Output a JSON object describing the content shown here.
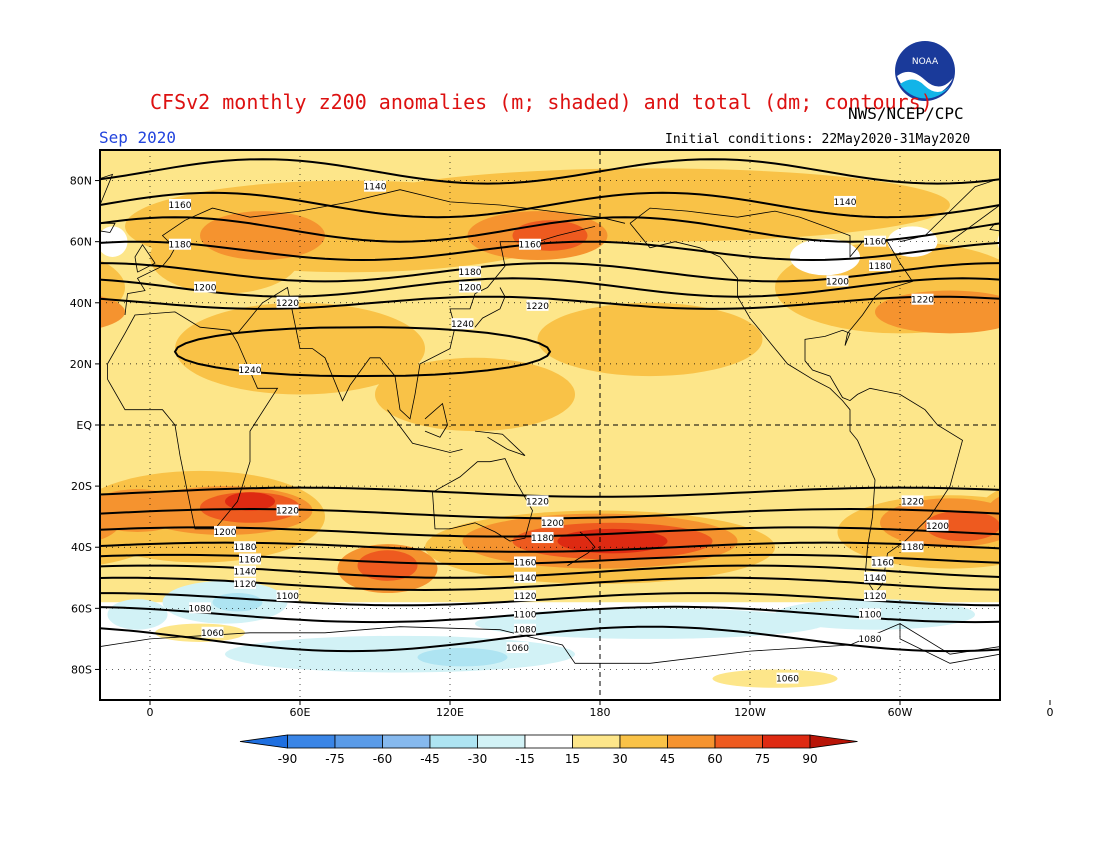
{
  "header": {
    "title": "CFSv2 monthly z200 anomalies (m; shaded) and total (dm; contours)",
    "organization": "NWS/NCEP/CPC",
    "month": "Sep 2020",
    "initial_conditions": "Initial conditions: 22May2020-31May2020",
    "logo_text": "NOAA"
  },
  "axes": {
    "x_ticks": [
      "0",
      "60E",
      "120E",
      "180",
      "120W",
      "60W",
      "0"
    ],
    "y_ticks": [
      "80N",
      "60N",
      "40N",
      "20N",
      "EQ",
      "20S",
      "40S",
      "60S",
      "80S"
    ]
  },
  "colorbar": {
    "labels": [
      "-90",
      "-75",
      "-60",
      "-45",
      "-30",
      "-15",
      "15",
      "30",
      "45",
      "60",
      "75",
      "90"
    ],
    "colors": [
      "#1e6fe0",
      "#3a85e6",
      "#5a9be8",
      "#86b9ee",
      "#aee4f2",
      "#d2f2f6",
      "#ffffff",
      "#fde68a",
      "#f9c247",
      "#f5932f",
      "#ee5a1f",
      "#de2a12",
      "#b81407"
    ]
  },
  "contour_labels": [
    {
      "text": "1140",
      "lon": 90,
      "lat": 78
    },
    {
      "text": "1160",
      "lon": 12,
      "lat": 72
    },
    {
      "text": "1180",
      "lon": 12,
      "lat": 59
    },
    {
      "text": "1200",
      "lon": 22,
      "lat": 45
    },
    {
      "text": "1220",
      "lon": 55,
      "lat": 40
    },
    {
      "text": "1240",
      "lon": 125,
      "lat": 33
    },
    {
      "text": "1240",
      "lon": 40,
      "lat": 18
    },
    {
      "text": "1160",
      "lon": 152,
      "lat": 59
    },
    {
      "text": "1180",
      "lon": 128,
      "lat": 50
    },
    {
      "text": "1200",
      "lon": 128,
      "lat": 45
    },
    {
      "text": "1220",
      "lon": 155,
      "lat": 39
    },
    {
      "text": "1140",
      "lon": 278,
      "lat": 73
    },
    {
      "text": "1160",
      "lon": 290,
      "lat": 60
    },
    {
      "text": "1180",
      "lon": 292,
      "lat": 52
    },
    {
      "text": "1200",
      "lon": 275,
      "lat": 47
    },
    {
      "text": "1220",
      "lon": 309,
      "lat": 41
    },
    {
      "text": "1220",
      "lon": 155,
      "lat": -25
    },
    {
      "text": "1200",
      "lon": 161,
      "lat": -32
    },
    {
      "text": "1180",
      "lon": 157,
      "lat": -37
    },
    {
      "text": "1160",
      "lon": 150,
      "lat": -45
    },
    {
      "text": "1140",
      "lon": 150,
      "lat": -50
    },
    {
      "text": "1120",
      "lon": 150,
      "lat": -56
    },
    {
      "text": "1100",
      "lon": 150,
      "lat": -62
    },
    {
      "text": "1080",
      "lon": 150,
      "lat": -67
    },
    {
      "text": "1060",
      "lon": 147,
      "lat": -73
    },
    {
      "text": "1220",
      "lon": 55,
      "lat": -28
    },
    {
      "text": "1200",
      "lon": 30,
      "lat": -35
    },
    {
      "text": "1180",
      "lon": 38,
      "lat": -40
    },
    {
      "text": "1160",
      "lon": 40,
      "lat": -44
    },
    {
      "text": "1140",
      "lon": 38,
      "lat": -48
    },
    {
      "text": "1120",
      "lon": 38,
      "lat": -52
    },
    {
      "text": "1100",
      "lon": 55,
      "lat": -56
    },
    {
      "text": "1080",
      "lon": 20,
      "lat": -60
    },
    {
      "text": "1060",
      "lon": 25,
      "lat": -68
    },
    {
      "text": "1220",
      "lon": 305,
      "lat": -25
    },
    {
      "text": "1200",
      "lon": 315,
      "lat": -33
    },
    {
      "text": "1180",
      "lon": 305,
      "lat": -40
    },
    {
      "text": "1160",
      "lon": 293,
      "lat": -45
    },
    {
      "text": "1140",
      "lon": 290,
      "lat": -50
    },
    {
      "text": "1120",
      "lon": 290,
      "lat": -56
    },
    {
      "text": "1100",
      "lon": 288,
      "lat": -62
    },
    {
      "text": "1080",
      "lon": 288,
      "lat": -70
    },
    {
      "text": "1060",
      "lon": 255,
      "lat": -83
    }
  ]
}
